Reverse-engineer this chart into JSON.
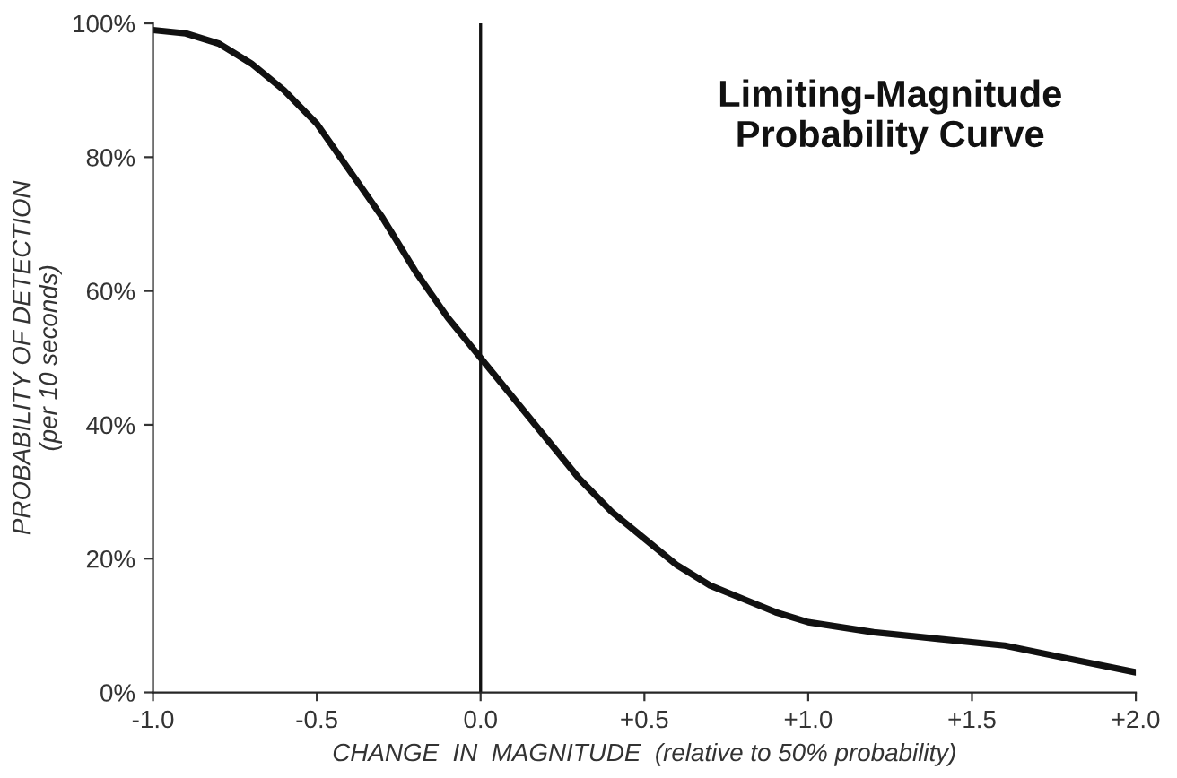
{
  "chart_data": {
    "type": "line",
    "title": "Limiting-Magnitude\nProbability Curve",
    "xlabel": "CHANGE  IN  MAGNITUDE  (relative to 50% probability)",
    "ylabel": "PROBABILITY OF DETECTION\n(per 10 seconds)",
    "x": [
      -1.0,
      -0.9,
      -0.8,
      -0.7,
      -0.6,
      -0.5,
      -0.4,
      -0.3,
      -0.2,
      -0.1,
      0.0,
      0.1,
      0.2,
      0.3,
      0.4,
      0.5,
      0.6,
      0.7,
      0.8,
      0.9,
      1.0,
      1.2,
      1.4,
      1.6,
      1.8,
      2.0
    ],
    "series": [
      {
        "color": "#111111",
        "values": [
          99,
          98.5,
          97,
          94,
          90,
          85,
          78,
          71,
          63,
          56,
          50,
          44,
          38,
          32,
          27,
          23,
          19,
          16,
          14,
          12,
          10.5,
          9,
          8,
          7,
          5,
          3
        ]
      }
    ],
    "xlim": [
      -1.0,
      2.0
    ],
    "xticks": [
      {
        "value": -1.0,
        "label": "-1.0"
      },
      {
        "value": -0.5,
        "label": "-0.5"
      },
      {
        "value": 0.0,
        "label": "0.0"
      },
      {
        "value": 0.5,
        "label": "+0.5"
      },
      {
        "value": 1.0,
        "label": "+1.0"
      },
      {
        "value": 1.5,
        "label": "+1.5"
      },
      {
        "value": 2.0,
        "label": "+2.0"
      }
    ],
    "ylim": [
      0,
      100
    ],
    "yticks": [
      {
        "value": 0,
        "label": "0%"
      },
      {
        "value": 20,
        "label": "20%"
      },
      {
        "value": 40,
        "label": "40%"
      },
      {
        "value": 60,
        "label": "60%"
      },
      {
        "value": 80,
        "label": "80%"
      },
      {
        "value": 100,
        "label": "100%"
      }
    ],
    "ref_lines": [
      {
        "axis": "x",
        "value": 0.0,
        "color": "#111111"
      }
    ],
    "grid": false,
    "marker": "none",
    "line_style": "solid"
  }
}
